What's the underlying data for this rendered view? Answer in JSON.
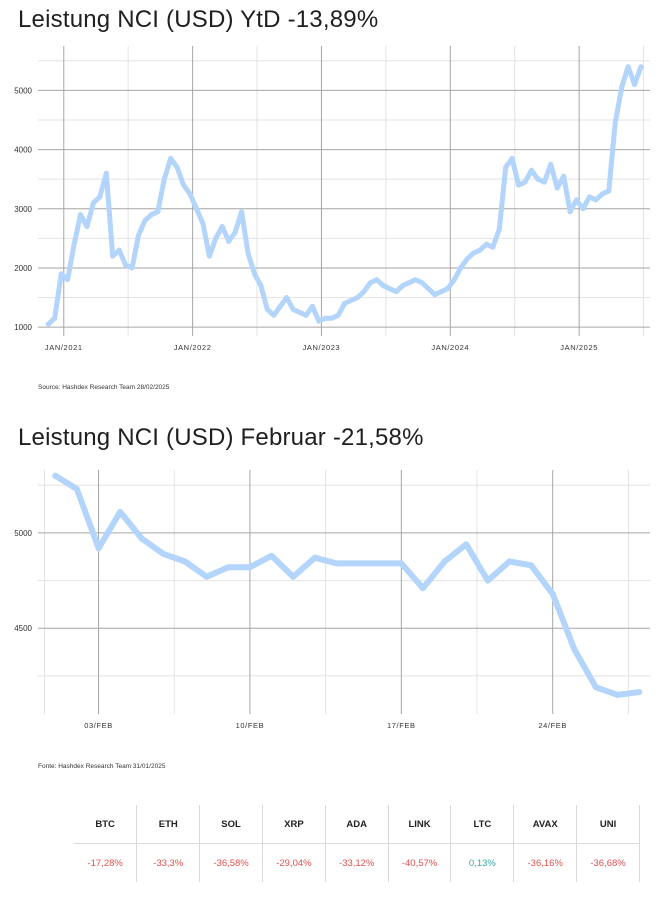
{
  "colors": {
    "line": "#b3d4fb",
    "grid_major": "#a6a6a6",
    "grid_minor": "#e3e3e3",
    "negative": "#e05050",
    "positive": "#3aa7a0"
  },
  "chart_ytd": {
    "title": "Leistung NCI (USD) YtD -13,89%",
    "source": "Source: Hashdex Research Team 28/02/2025"
  },
  "chart_feb": {
    "title": "Leistung NCI (USD) Februar -21,58%",
    "source": "Fonte: Hashdex Research Team 31/01/2025"
  },
  "chart_data": [
    {
      "type": "line",
      "title": "Leistung NCI (USD) YtD -13,89%",
      "xlabel": "",
      "ylabel": "",
      "x_ticks": [
        "JAN/2021",
        "JAN/2022",
        "JAN/2023",
        "JAN/2024",
        "JAN/2025"
      ],
      "y_ticks": [
        1000,
        2000,
        3000,
        4000,
        5000
      ],
      "xlim": [
        2020.8,
        2025.55
      ],
      "ylim": [
        850,
        5750
      ],
      "grid": true,
      "x": [
        2020.88,
        2020.93,
        2020.98,
        2021.03,
        2021.08,
        2021.13,
        2021.18,
        2021.23,
        2021.28,
        2021.33,
        2021.38,
        2021.43,
        2021.48,
        2021.53,
        2021.58,
        2021.63,
        2021.68,
        2021.73,
        2021.78,
        2021.83,
        2021.88,
        2021.93,
        2021.98,
        2022.03,
        2022.08,
        2022.13,
        2022.18,
        2022.23,
        2022.28,
        2022.33,
        2022.38,
        2022.43,
        2022.48,
        2022.53,
        2022.58,
        2022.63,
        2022.68,
        2022.73,
        2022.78,
        2022.83,
        2022.88,
        2022.93,
        2022.98,
        2023.03,
        2023.08,
        2023.13,
        2023.18,
        2023.23,
        2023.28,
        2023.33,
        2023.38,
        2023.43,
        2023.48,
        2023.53,
        2023.58,
        2023.63,
        2023.68,
        2023.73,
        2023.78,
        2023.83,
        2023.88,
        2023.93,
        2023.98,
        2024.03,
        2024.08,
        2024.13,
        2024.18,
        2024.23,
        2024.28,
        2024.33,
        2024.38,
        2024.43,
        2024.48,
        2024.53,
        2024.58,
        2024.63,
        2024.68,
        2024.73,
        2024.78,
        2024.83,
        2024.88,
        2024.93,
        2024.98,
        2025.03,
        2025.08,
        2025.13,
        2025.18,
        2025.23,
        2025.28,
        2025.33,
        2025.38,
        2025.43,
        2025.48
      ],
      "values": [
        1050,
        1150,
        1900,
        1800,
        2400,
        2900,
        2700,
        3100,
        3200,
        3600,
        2200,
        2300,
        2050,
        2000,
        2550,
        2800,
        2900,
        2950,
        3500,
        3850,
        3700,
        3400,
        3250,
        3000,
        2750,
        2200,
        2500,
        2700,
        2450,
        2600,
        2950,
        2250,
        1900,
        1700,
        1300,
        1200,
        1350,
        1500,
        1300,
        1250,
        1200,
        1350,
        1100,
        1150,
        1150,
        1200,
        1400,
        1450,
        1500,
        1600,
        1750,
        1800,
        1700,
        1650,
        1600,
        1700,
        1750,
        1800,
        1750,
        1650,
        1550,
        1600,
        1650,
        1800,
        2000,
        2150,
        2250,
        2300,
        2400,
        2350,
        2650,
        3700,
        3850,
        3400,
        3450,
        3650,
        3500,
        3450,
        3750,
        3350,
        3550,
        2950,
        3150,
        3000,
        3200,
        3150,
        3250,
        3300,
        4450,
        5050,
        5400,
        5100,
        5400
      ]
    },
    {
      "type": "line",
      "title": "Leistung NCI (USD) Februar -21,58%",
      "xlabel": "",
      "ylabel": "",
      "x_ticks": [
        "03/FEB",
        "10/FEB",
        "17/FEB",
        "24/FEB"
      ],
      "x_tick_values": [
        3,
        10,
        17,
        24
      ],
      "y_ticks": [
        4500,
        5000
      ],
      "xlim": [
        0.2,
        28.5
      ],
      "ylim": [
        4050,
        5330
      ],
      "grid": true,
      "x": [
        1,
        2,
        3,
        4,
        5,
        6,
        7,
        8,
        9,
        10,
        11,
        12,
        13,
        14,
        17,
        18,
        19,
        20,
        21,
        22,
        23,
        24,
        25,
        26,
        27,
        28
      ],
      "values": [
        5300,
        5230,
        4920,
        5110,
        4970,
        4890,
        4850,
        4770,
        4820,
        4820,
        4880,
        4770,
        4870,
        4840,
        4840,
        4710,
        4850,
        4940,
        4750,
        4850,
        4830,
        4680,
        4390,
        4190,
        4150,
        4165
      ]
    }
  ],
  "table": {
    "headers": [
      "BTC",
      "ETH",
      "SOL",
      "XRP",
      "ADA",
      "LINK",
      "LTC",
      "AVAX",
      "UNI"
    ],
    "values": [
      "-17,28%",
      "-33,3%",
      "-36,58%",
      "-29,04%",
      "-33,12%",
      "-40,57%",
      "0,13%",
      "-36,16%",
      "-36,68%"
    ],
    "signs": [
      "neg",
      "neg",
      "neg",
      "neg",
      "neg",
      "neg",
      "pos",
      "neg",
      "neg"
    ]
  }
}
